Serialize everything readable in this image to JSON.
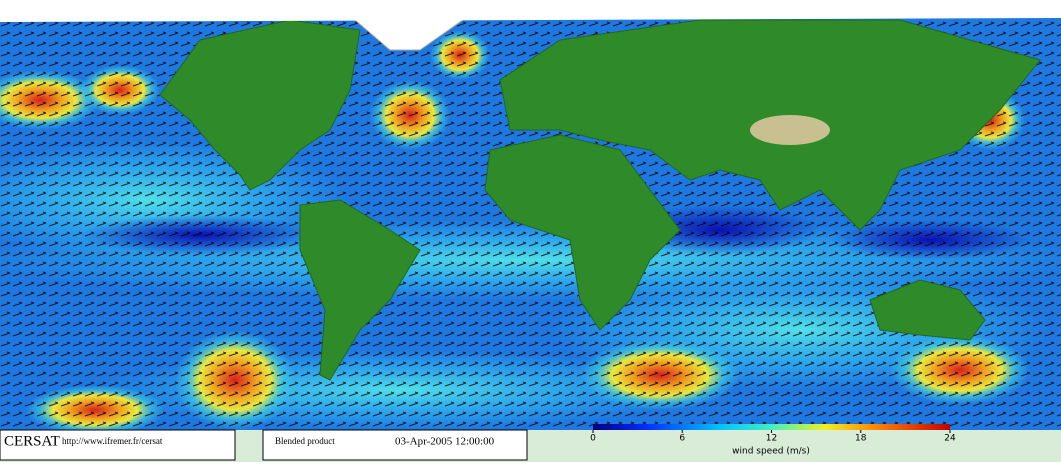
{
  "credit": {
    "name": "CERSAT",
    "url": "http://www.ifremer.fr/cersat"
  },
  "product": {
    "label": "Blended product",
    "date": "03-Apr-2005 12:00:00"
  },
  "colorbar": {
    "label": "wind speed (m/s)",
    "range": [
      0,
      24
    ],
    "ticks": [
      0,
      6,
      12,
      18,
      24
    ]
  }
}
